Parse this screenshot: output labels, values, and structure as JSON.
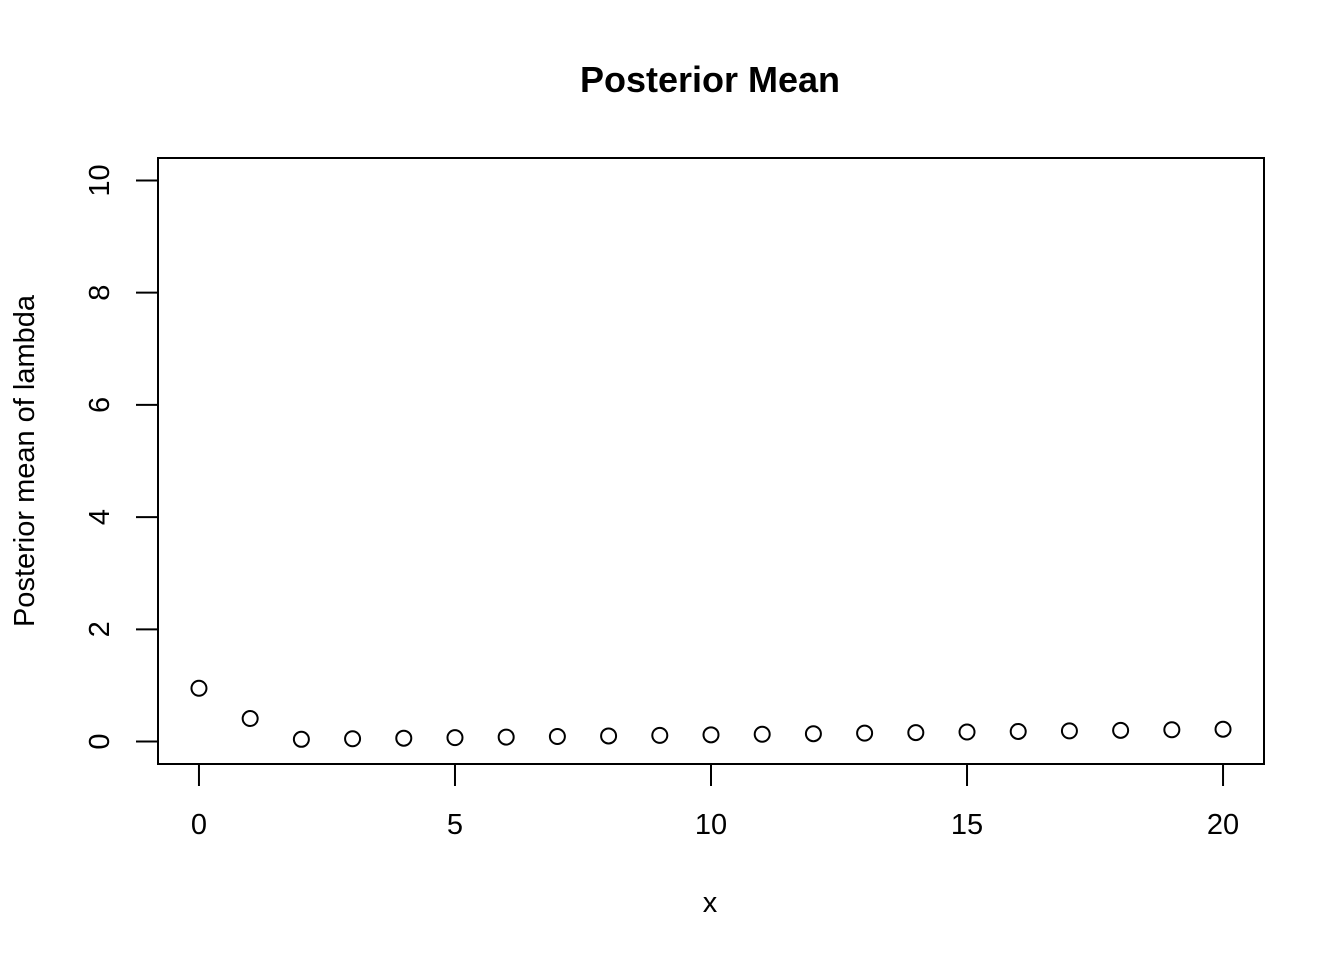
{
  "chart_data": {
    "type": "scatter",
    "title": "Posterior Mean",
    "xlabel": "x",
    "ylabel": "Posterior mean of lambda",
    "xlim": [
      -0.8,
      20.8
    ],
    "ylim": [
      -0.4,
      10.4
    ],
    "x_ticks": [
      0,
      5,
      10,
      15,
      20
    ],
    "y_ticks": [
      0,
      2,
      4,
      6,
      8,
      10
    ],
    "grid": false,
    "marker": "open-circle",
    "x": [
      0,
      1,
      2,
      3,
      4,
      5,
      6,
      7,
      8,
      9,
      10,
      11,
      12,
      13,
      14,
      15,
      16,
      17,
      18,
      19,
      20
    ],
    "y": [
      0.95,
      0.41,
      0.04,
      0.05,
      0.06,
      0.07,
      0.08,
      0.09,
      0.1,
      0.11,
      0.12,
      0.13,
      0.14,
      0.15,
      0.16,
      0.17,
      0.18,
      0.19,
      0.2,
      0.21,
      0.22
    ]
  }
}
